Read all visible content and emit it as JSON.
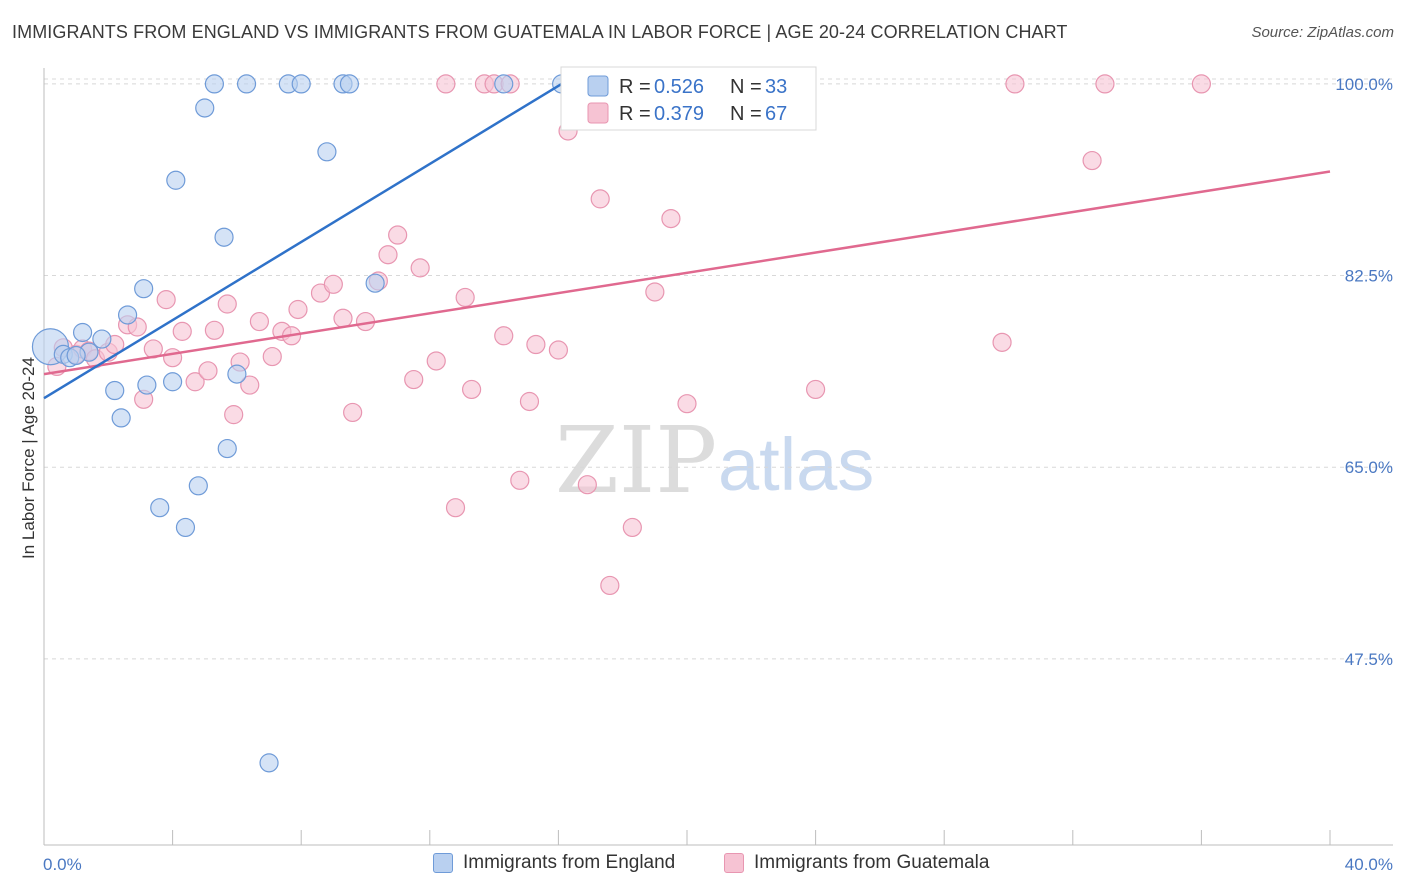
{
  "title": "IMMIGRANTS FROM ENGLAND VS IMMIGRANTS FROM GUATEMALA IN LABOR FORCE | AGE 20-24 CORRELATION CHART",
  "source": "Source: ZipAtlas.com",
  "watermark": {
    "zip": "ZIP",
    "atlas": "atlas"
  },
  "colors": {
    "england_fill": "#b9d0f0",
    "england_stroke": "#6f9bd8",
    "england_line": "#2f72c9",
    "guatemala_fill": "#f6c3d3",
    "guatemala_stroke": "#e896b1",
    "guatemala_line": "#e0698f",
    "axis_label": "#4a78c2",
    "grid": "#d8d8d8"
  },
  "legend": {
    "england": {
      "r_label": "R = ",
      "r_value": "0.526",
      "n_label": "N = ",
      "n_value": "33"
    },
    "guatemala": {
      "r_label": "R = ",
      "r_value": "0.379",
      "n_label": "N = ",
      "n_value": "67"
    }
  },
  "bottom_legend": {
    "england": "Immigrants from England",
    "guatemala": "Immigrants from Guatemala"
  },
  "chart_data": {
    "type": "scatter",
    "title": "IMMIGRANTS FROM ENGLAND VS IMMIGRANTS FROM GUATEMALA IN LABOR FORCE | AGE 20-24 CORRELATION CHART",
    "xlabel": "",
    "ylabel": "In Labor Force | Age 20-24",
    "xlim": [
      0,
      40
    ],
    "ylim": [
      30.5,
      102
    ],
    "x_tick_labels": [
      "0.0%",
      "40.0%"
    ],
    "y_ticks": [
      47.5,
      65.0,
      82.5,
      100.0
    ],
    "y_tick_labels": [
      "47.5%",
      "65.0%",
      "82.5%",
      "100.0%"
    ],
    "grid": true,
    "legend_position": "top-center",
    "series": [
      {
        "name": "Immigrants from England",
        "R": 0.526,
        "N": 33,
        "trend": {
          "x0": 0,
          "y0": 71.3,
          "x1": 16.1,
          "y1": 100.0
        },
        "points": [
          [
            0.2,
            76.0,
            "large"
          ],
          [
            0.6,
            75.3
          ],
          [
            0.8,
            75.0
          ],
          [
            1.2,
            77.3
          ],
          [
            1.4,
            75.5
          ],
          [
            1.8,
            76.7
          ],
          [
            2.2,
            72.0
          ],
          [
            2.4,
            69.5
          ],
          [
            2.6,
            78.9
          ],
          [
            3.1,
            81.3
          ],
          [
            3.2,
            72.5
          ],
          [
            3.6,
            61.3
          ],
          [
            4.0,
            72.8
          ],
          [
            4.1,
            91.2
          ],
          [
            4.4,
            59.5
          ],
          [
            4.8,
            63.3
          ],
          [
            5.0,
            97.8
          ],
          [
            5.3,
            100.0
          ],
          [
            5.6,
            86.0
          ],
          [
            5.7,
            66.7
          ],
          [
            6.0,
            73.5
          ],
          [
            6.3,
            100.0
          ],
          [
            7.0,
            38.0
          ],
          [
            7.6,
            100.0
          ],
          [
            8.0,
            100.0
          ],
          [
            8.8,
            93.8
          ],
          [
            9.3,
            100.0
          ],
          [
            9.5,
            100.0
          ],
          [
            10.3,
            81.8
          ],
          [
            14.3,
            100.0
          ],
          [
            16.1,
            100.0
          ],
          [
            20.1,
            100.0
          ],
          [
            1.0,
            75.2
          ]
        ]
      },
      {
        "name": "Immigrants from Guatemala",
        "R": 0.379,
        "N": 67,
        "trend": {
          "x0": 0,
          "y0": 73.5,
          "x1": 40,
          "y1": 92.0
        },
        "points": [
          [
            0.4,
            74.2
          ],
          [
            1.0,
            75.3
          ],
          [
            1.2,
            75.8
          ],
          [
            1.4,
            75.6
          ],
          [
            1.6,
            74.9
          ],
          [
            2.0,
            75.5
          ],
          [
            2.2,
            76.2
          ],
          [
            2.6,
            78.0
          ],
          [
            2.9,
            77.8
          ],
          [
            3.1,
            71.2
          ],
          [
            3.4,
            75.8
          ],
          [
            3.8,
            80.3
          ],
          [
            4.0,
            75.0
          ],
          [
            4.3,
            77.4
          ],
          [
            4.7,
            72.8
          ],
          [
            5.1,
            73.8
          ],
          [
            5.3,
            77.5
          ],
          [
            5.7,
            79.9
          ],
          [
            5.9,
            69.8
          ],
          [
            6.1,
            74.6
          ],
          [
            6.4,
            72.5
          ],
          [
            6.7,
            78.3
          ],
          [
            7.1,
            75.1
          ],
          [
            7.4,
            77.4
          ],
          [
            7.7,
            77.0
          ],
          [
            7.9,
            79.4
          ],
          [
            8.6,
            80.9
          ],
          [
            9.0,
            81.7
          ],
          [
            9.3,
            78.6
          ],
          [
            9.6,
            70.0
          ],
          [
            10.0,
            78.3
          ],
          [
            10.4,
            82.0
          ],
          [
            10.7,
            84.4
          ],
          [
            11.0,
            86.2
          ],
          [
            11.5,
            73.0
          ],
          [
            11.7,
            83.2
          ],
          [
            12.2,
            74.7
          ],
          [
            12.5,
            100.0
          ],
          [
            12.8,
            61.3
          ],
          [
            13.1,
            80.5
          ],
          [
            13.3,
            72.1
          ],
          [
            13.7,
            100.0
          ],
          [
            14.0,
            100.0
          ],
          [
            14.5,
            100.0
          ],
          [
            14.3,
            77.0
          ],
          [
            14.8,
            63.8
          ],
          [
            15.1,
            71.0
          ],
          [
            15.3,
            76.2
          ],
          [
            16.0,
            75.7
          ],
          [
            16.3,
            95.7
          ],
          [
            16.9,
            63.4
          ],
          [
            17.3,
            89.5
          ],
          [
            17.9,
            100.0
          ],
          [
            17.6,
            54.2
          ],
          [
            18.3,
            59.5
          ],
          [
            18.6,
            100.0
          ],
          [
            19.0,
            81.0
          ],
          [
            19.5,
            87.7
          ],
          [
            20.0,
            70.8
          ],
          [
            24.0,
            72.1
          ],
          [
            29.8,
            76.4
          ],
          [
            30.2,
            100.0
          ],
          [
            32.6,
            93.0
          ],
          [
            33.0,
            100.0
          ],
          [
            36.0,
            100.0
          ],
          [
            0.6,
            75.9
          ],
          [
            16.5,
            100.0
          ]
        ]
      }
    ]
  }
}
